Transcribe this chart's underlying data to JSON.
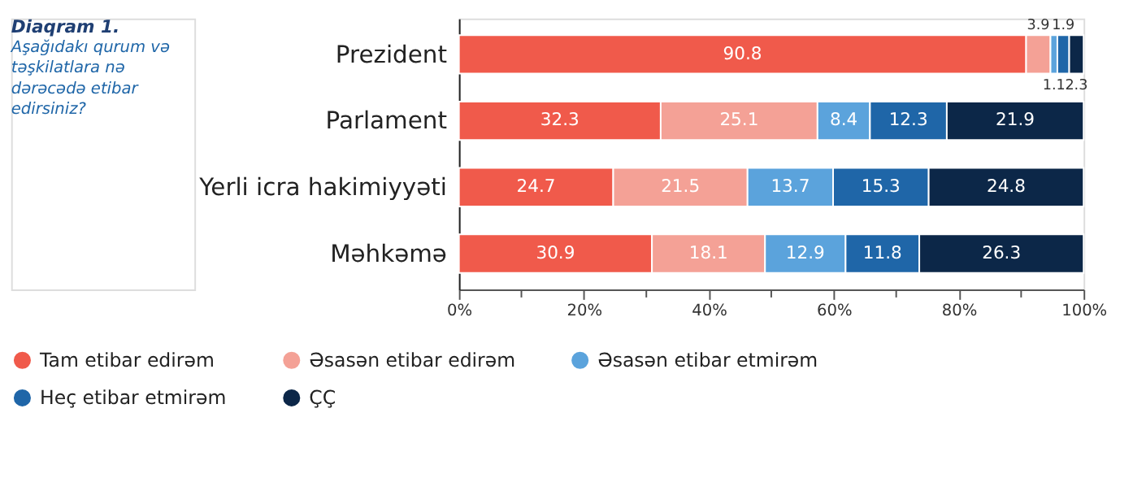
{
  "chart_data": {
    "type": "bar",
    "orientation": "horizontal",
    "stacked": true,
    "title": "Diaqram 1.",
    "subtitle": "Aşağıdakı qurum və təşkilatlara nə dərəcədə etibar edirsiniz?",
    "categories": [
      "Prezident",
      "Parlament",
      "Yerli icra hakimiyyəti",
      "Məhkəmə"
    ],
    "series": [
      {
        "name": "Tam etibar edirəm",
        "color": "#f05a4b",
        "values": [
          90.8,
          32.3,
          24.7,
          30.9
        ]
      },
      {
        "name": "Əsasən etibar edirəm",
        "color": "#f4a196",
        "values": [
          3.9,
          25.1,
          21.5,
          18.1
        ]
      },
      {
        "name": "Əsasən etibar etmirəm",
        "color": "#5ba3dc",
        "values": [
          1.1,
          8.4,
          13.7,
          12.9
        ]
      },
      {
        "name": "Heç etibar etmirəm",
        "color": "#1f66a8",
        "values": [
          1.9,
          12.3,
          15.3,
          11.8
        ]
      },
      {
        "name": "ÇÇ",
        "color": "#0c2748",
        "values": [
          2.3,
          21.9,
          24.8,
          26.3
        ]
      }
    ],
    "xlim": [
      0,
      100
    ],
    "xticks": [
      {
        "value": 0,
        "label": "0%"
      },
      {
        "value": 10,
        "label": null
      },
      {
        "value": 20,
        "label": "20%"
      },
      {
        "value": 30,
        "label": null
      },
      {
        "value": 40,
        "label": "40%"
      },
      {
        "value": 50,
        "label": null
      },
      {
        "value": 60,
        "label": "60%"
      },
      {
        "value": 70,
        "label": null
      },
      {
        "value": 80,
        "label": "80%"
      },
      {
        "value": 90,
        "label": null
      },
      {
        "value": 100,
        "label": "100%"
      }
    ],
    "data_labels": true,
    "legend": "bottom",
    "grid": false
  }
}
